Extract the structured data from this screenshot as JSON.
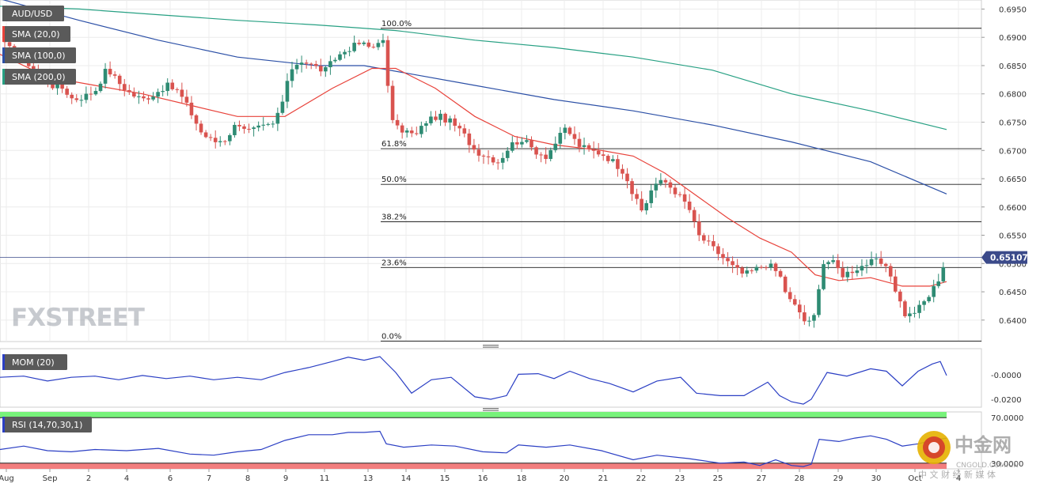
{
  "chart_data": {
    "type": "candlestick",
    "symbol": "AUD/USD",
    "indicators": [
      "SMA (20,0)",
      "SMA (100,0)",
      "SMA (200,0)"
    ],
    "last_price": "0.65107",
    "main_axis": {
      "ylim": [
        0.6362,
        0.6966
      ],
      "ticks": [
        "0.6950",
        "0.6900",
        "0.6850",
        "0.6800",
        "0.6750",
        "0.6700",
        "0.6650",
        "0.6600",
        "0.6550",
        "0.6500",
        "0.6450",
        "0.6400"
      ]
    },
    "x_axis": {
      "labels": [
        "Aug",
        "Sep",
        "2",
        "4",
        "6",
        "7",
        "8",
        "9",
        "11",
        "13",
        "14",
        "15",
        "16",
        "18",
        "20",
        "21",
        "22",
        "23",
        "25",
        "27",
        "28",
        "29",
        "30",
        "Oct",
        "4"
      ]
    },
    "fibonacci": [
      {
        "label": "100.0%",
        "value": 0.6916
      },
      {
        "label": "61.8%",
        "value": 0.6703
      },
      {
        "label": "50.0%",
        "value": 0.664
      },
      {
        "label": "38.2%",
        "value": 0.6574
      },
      {
        "label": "23.6%",
        "value": 0.6493
      },
      {
        "label": "0.0%",
        "value": 0.6363
      }
    ],
    "colors": {
      "bull": "#2e8b73",
      "bear": "#d9534f",
      "sma20": "#e8423a",
      "sma100": "#2b4fa6",
      "sma200": "#27a083",
      "momentum": "#2b3fc4",
      "rsi": "#2b3fc4",
      "rsi_overbought_band": "#77f27a",
      "rsi_oversold_band": "#f27e7e"
    },
    "momentum": {
      "name": "MOM (20)",
      "ticks": [
        "-0.0000",
        "-0.0200"
      ],
      "ylim": [
        -0.0265,
        0.0215
      ]
    },
    "rsi": {
      "name": "RSI (14,70,30,1)",
      "ticks": [
        "70.0000",
        "30.0000"
      ],
      "ylim": [
        25,
        75
      ]
    }
  },
  "branding": {
    "watermark": "FXSTREET",
    "logo_text": "中金网",
    "logo_domain": "CNGOLD.COM.CN",
    "logo_tagline": "中 文 财 经 新 媒 体"
  }
}
